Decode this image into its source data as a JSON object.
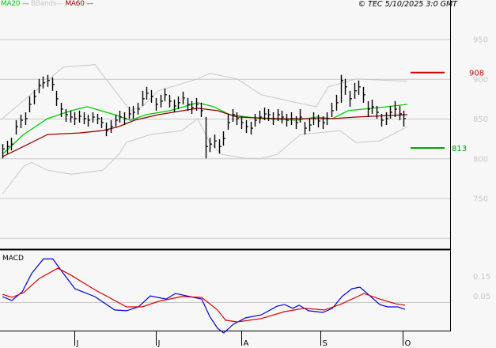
{
  "chart_data": [
    {
      "type": "ohlc",
      "title": "",
      "legend": {
        "position": "top-left",
        "entries": [
          {
            "label": "MA20",
            "color": "#00cc00"
          },
          {
            "label": "BBands",
            "color": "#c8c8c8"
          },
          {
            "label": "MA60",
            "color": "#990000"
          }
        ]
      },
      "copyright": "© TEC 5/10/2025 3:0 GMT",
      "ylim": [
        690,
        990
      ],
      "yticks": [
        950,
        900,
        850,
        800,
        750
      ],
      "grid": true,
      "xtick_labels": [
        {
          "label": "J",
          "index": 16
        },
        {
          "label": "J",
          "index": 34
        },
        {
          "label": "A",
          "index": 53
        },
        {
          "label": "S",
          "index": 70.5
        },
        {
          "label": "O",
          "index": 88.7
        }
      ],
      "bars_hlc": [
        [
          818,
          800,
          812
        ],
        [
          822,
          806,
          815
        ],
        [
          826,
          810,
          818
        ],
        [
          848,
          830,
          840
        ],
        [
          855,
          838,
          848
        ],
        [
          858,
          842,
          850
        ],
        [
          878,
          858,
          868
        ],
        [
          886,
          868,
          878
        ],
        [
          900,
          882,
          892
        ],
        [
          903,
          888,
          895
        ],
        [
          905,
          890,
          898
        ],
        [
          902,
          885,
          893
        ],
        [
          885,
          866,
          875
        ],
        [
          870,
          852,
          862
        ],
        [
          862,
          846,
          855
        ],
        [
          860,
          845,
          852
        ],
        [
          858,
          842,
          850
        ],
        [
          860,
          845,
          853
        ],
        [
          858,
          843,
          850
        ],
        [
          855,
          840,
          848
        ],
        [
          858,
          845,
          852
        ],
        [
          856,
          843,
          850
        ],
        [
          852,
          838,
          845
        ],
        [
          845,
          828,
          835
        ],
        [
          848,
          832,
          840
        ],
        [
          855,
          840,
          848
        ],
        [
          860,
          845,
          852
        ],
        [
          858,
          842,
          850
        ],
        [
          865,
          850,
          856
        ],
        [
          866,
          850,
          858
        ],
        [
          870,
          855,
          862
        ],
        [
          885,
          866,
          875
        ],
        [
          890,
          874,
          882
        ],
        [
          886,
          870,
          878
        ],
        [
          876,
          860,
          868
        ],
        [
          880,
          864,
          872
        ],
        [
          888,
          872,
          880
        ],
        [
          880,
          864,
          872
        ],
        [
          874,
          858,
          866
        ],
        [
          878,
          862,
          870
        ],
        [
          884,
          868,
          876
        ],
        [
          876,
          860,
          868
        ],
        [
          872,
          856,
          864
        ],
        [
          876,
          860,
          868
        ],
        [
          870,
          852,
          860
        ],
        [
          852,
          800,
          815
        ],
        [
          826,
          808,
          818
        ],
        [
          830,
          813,
          822
        ],
        [
          824,
          806,
          815
        ],
        [
          834,
          816,
          825
        ],
        [
          856,
          836,
          845
        ],
        [
          862,
          846,
          855
        ],
        [
          858,
          842,
          850
        ],
        [
          853,
          837,
          845
        ],
        [
          848,
          832,
          840
        ],
        [
          846,
          830,
          838
        ],
        [
          856,
          840,
          848
        ],
        [
          860,
          844,
          852
        ],
        [
          864,
          848,
          856
        ],
        [
          862,
          847,
          855
        ],
        [
          858,
          842,
          850
        ],
        [
          862,
          847,
          855
        ],
        [
          860,
          844,
          852
        ],
        [
          856,
          840,
          848
        ],
        [
          858,
          842,
          850
        ],
        [
          853,
          837,
          845
        ],
        [
          862,
          845,
          852
        ],
        [
          846,
          830,
          838
        ],
        [
          850,
          834,
          842
        ],
        [
          858,
          842,
          850
        ],
        [
          855,
          839,
          847
        ],
        [
          853,
          837,
          845
        ],
        [
          858,
          842,
          850
        ],
        [
          870,
          852,
          860
        ],
        [
          880,
          860,
          870
        ],
        [
          905,
          870,
          898
        ],
        [
          900,
          880,
          890
        ],
        [
          885,
          865,
          875
        ],
        [
          895,
          875,
          885
        ],
        [
          898,
          880,
          890
        ],
        [
          890,
          870,
          880
        ],
        [
          872,
          852,
          862
        ],
        [
          874,
          856,
          865
        ],
        [
          866,
          850,
          858
        ],
        [
          856,
          840,
          848
        ],
        [
          858,
          842,
          850
        ],
        [
          866,
          850,
          858
        ],
        [
          872,
          852,
          862
        ],
        [
          866,
          848,
          856
        ],
        [
          860,
          840,
          850
        ]
      ],
      "series": [
        {
          "name": "BBands upper",
          "color": "#c8c8c8",
          "points": [
            [
              0,
              850
            ],
            [
              13.5,
              915
            ],
            [
              20.5,
              918
            ],
            [
              28.4,
              860
            ],
            [
              31,
              865
            ],
            [
              34.6,
              885
            ],
            [
              43.3,
              900
            ],
            [
              46,
              907
            ],
            [
              52.1,
              900
            ],
            [
              57.4,
              880
            ],
            [
              65.3,
              870
            ],
            [
              69.6,
              865
            ],
            [
              72.3,
              890
            ],
            [
              78.4,
              900
            ],
            [
              89.8,
              897
            ]
          ]
        },
        {
          "name": "BBands lower",
          "color": "#c8c8c8",
          "points": [
            [
              0,
              755
            ],
            [
              4.7,
              790
            ],
            [
              6.5,
              795
            ],
            [
              10,
              785
            ],
            [
              15.3,
              780
            ],
            [
              22.3,
              785
            ],
            [
              25.8,
              805
            ],
            [
              27.5,
              820
            ],
            [
              32.8,
              830
            ],
            [
              39.8,
              835
            ],
            [
              43.3,
              850
            ],
            [
              46,
              820
            ],
            [
              48.6,
              805
            ],
            [
              53.9,
              800
            ],
            [
              57.4,
              800
            ],
            [
              60.9,
              805
            ],
            [
              66.1,
              830
            ],
            [
              74.9,
              835
            ],
            [
              78.4,
              820
            ],
            [
              83.7,
              822
            ],
            [
              89.8,
              840
            ]
          ]
        },
        {
          "name": "MA20",
          "color": "#00cc00",
          "points": [
            [
              0,
              805
            ],
            [
              4.7,
              830
            ],
            [
              10,
              850
            ],
            [
              15.3,
              860
            ],
            [
              18.8,
              865
            ],
            [
              24.9,
              855
            ],
            [
              28.4,
              848
            ],
            [
              31.9,
              855
            ],
            [
              37.2,
              860
            ],
            [
              43.3,
              870
            ],
            [
              46.8,
              865
            ],
            [
              50.4,
              855
            ],
            [
              57.4,
              850
            ],
            [
              65.3,
              848
            ],
            [
              69.6,
              852
            ],
            [
              73.2,
              850
            ],
            [
              76.7,
              860
            ],
            [
              80.2,
              862
            ],
            [
              85.4,
              865
            ],
            [
              89.8,
              868
            ]
          ]
        },
        {
          "name": "MA60",
          "color": "#990000",
          "points": [
            [
              0,
              802
            ],
            [
              4.7,
              815
            ],
            [
              10,
              830
            ],
            [
              17,
              832
            ],
            [
              22.3,
              835
            ],
            [
              25.8,
              840
            ],
            [
              29.3,
              848
            ],
            [
              34.6,
              855
            ],
            [
              43.3,
              863
            ],
            [
              47.7,
              860
            ],
            [
              52.1,
              852
            ],
            [
              60.9,
              850
            ],
            [
              73.2,
              850
            ],
            [
              78.4,
              852
            ],
            [
              89.8,
              855
            ]
          ]
        }
      ],
      "levels": [
        {
          "label": "908",
          "value": 908,
          "color": "#cc0000"
        },
        {
          "label": "813",
          "value": 813,
          "color": "#009900"
        }
      ]
    },
    {
      "type": "line",
      "title": "MACD",
      "ylim": [
        -0.12,
        0.3
      ],
      "yticks": [
        {
          "label": "0.15",
          "value": 0.15
        },
        {
          "label": "0.05",
          "value": 0.05
        }
      ],
      "zero_line": 0.05,
      "series": [
        {
          "name": "MACD",
          "color": "#0000dd",
          "points": [
            [
              0,
              0.077
            ],
            [
              2.1,
              0.058
            ],
            [
              4.4,
              0.1
            ],
            [
              6.5,
              0.19
            ],
            [
              9.1,
              0.26
            ],
            [
              11.2,
              0.26
            ],
            [
              13.5,
              0.19
            ],
            [
              16.1,
              0.115
            ],
            [
              20.5,
              0.077
            ],
            [
              24.9,
              0.012
            ],
            [
              27.5,
              0.008
            ],
            [
              30.2,
              0.027
            ],
            [
              32.8,
              0.08
            ],
            [
              36.3,
              0.065
            ],
            [
              38.4,
              0.092
            ],
            [
              41.6,
              0.077
            ],
            [
              44.2,
              0.065
            ],
            [
              46,
              -0.02
            ],
            [
              47.7,
              -0.077
            ],
            [
              49.1,
              -0.1
            ],
            [
              51.2,
              -0.058
            ],
            [
              53.9,
              -0.027
            ],
            [
              57.4,
              -0.012
            ],
            [
              60.9,
              0.03
            ],
            [
              62.6,
              0.038
            ],
            [
              64.4,
              0.02
            ],
            [
              65.8,
              0.035
            ],
            [
              67.9,
              0.008
            ],
            [
              71.1,
              0.0
            ],
            [
              73.2,
              0.02
            ],
            [
              75.3,
              0.077
            ],
            [
              77.5,
              0.115
            ],
            [
              79.3,
              0.123
            ],
            [
              81.1,
              0.088
            ],
            [
              83.7,
              0.038
            ],
            [
              85.4,
              0.027
            ],
            [
              87.7,
              0.027
            ],
            [
              89.3,
              0.015
            ]
          ]
        },
        {
          "name": "Signal",
          "color": "#dd0000",
          "points": [
            [
              0,
              0.088
            ],
            [
              2.1,
              0.073
            ],
            [
              4.7,
              0.096
            ],
            [
              8.2,
              0.165
            ],
            [
              12.3,
              0.215
            ],
            [
              15.3,
              0.18
            ],
            [
              20.5,
              0.11
            ],
            [
              27.5,
              0.027
            ],
            [
              31,
              0.027
            ],
            [
              34.6,
              0.054
            ],
            [
              39.8,
              0.077
            ],
            [
              44.2,
              0.073
            ],
            [
              47.7,
              0.012
            ],
            [
              49.5,
              -0.038
            ],
            [
              52.1,
              -0.046
            ],
            [
              57.4,
              -0.03
            ],
            [
              62.6,
              0.004
            ],
            [
              67,
              0.02
            ],
            [
              71.4,
              0.012
            ],
            [
              74.9,
              0.038
            ],
            [
              80.2,
              0.092
            ],
            [
              83.7,
              0.065
            ],
            [
              87.2,
              0.042
            ],
            [
              89.3,
              0.035
            ]
          ]
        }
      ]
    }
  ]
}
